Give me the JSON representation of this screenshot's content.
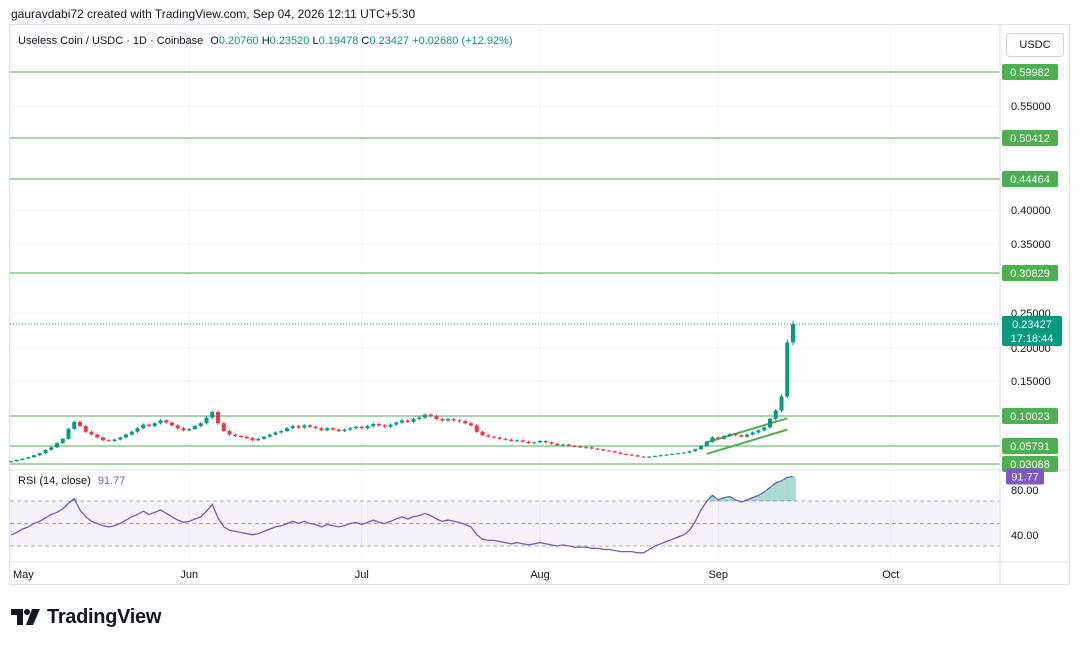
{
  "header": {
    "credit": "gauravdabi72 created with TradingView.com, Sep 04, 2026 12:11 UTC+5:30"
  },
  "legend": {
    "symbol": "Useless Coin / USDC · 1D · Coinbase",
    "open_label": "O",
    "open": "0.20760",
    "high_label": "H",
    "high": "0.23520",
    "low_label": "L",
    "low": "0.19478",
    "close_label": "C",
    "close": "0.23427",
    "change": "+0.02680 (+12.92%)"
  },
  "currency_button": "USDC",
  "rsi": {
    "label": "RSI (14, close)",
    "value": "91.77"
  },
  "logo_text": "TradingView",
  "colors": {
    "up": "#089981",
    "down": "#f23645",
    "level": "#4caf50",
    "rsi": "#7e57c2",
    "rsi_band": "#7e57c2"
  },
  "chart_data": [
    {
      "type": "candlestick",
      "title": "Useless Coin / USDC · 1D · Coinbase",
      "ylabel": "USDC",
      "x_tick_labels": [
        "May",
        "Jun",
        "Jul",
        "Aug",
        "Sep",
        "Oct"
      ],
      "y_tick_labels": [
        "0.55000",
        "0.40000",
        "0.35000",
        "0.25000",
        "0.20000",
        "0.15000"
      ],
      "y_ticks": [
        0.55,
        0.4,
        0.35,
        0.25,
        0.2,
        0.15
      ],
      "horizontal_levels": [
        {
          "value": 0.59982,
          "label": "0.59982"
        },
        {
          "value": 0.50412,
          "label": "0.50412"
        },
        {
          "value": 0.44464,
          "label": "0.44464"
        },
        {
          "value": 0.30829,
          "label": "0.30829"
        },
        {
          "value": 0.10023,
          "label": "0.10023"
        },
        {
          "value": 0.05791,
          "label": "0.05791"
        },
        {
          "value": 0.03088,
          "label": "0.03088"
        }
      ],
      "last_price": {
        "value": 0.23427,
        "label": "0.23427",
        "countdown": "17:18:44"
      },
      "x_start_date": "2026-05-01",
      "close": [
        0.035,
        0.037,
        0.039,
        0.041,
        0.044,
        0.047,
        0.052,
        0.056,
        0.062,
        0.068,
        0.082,
        0.092,
        0.086,
        0.078,
        0.074,
        0.07,
        0.066,
        0.065,
        0.067,
        0.07,
        0.074,
        0.078,
        0.083,
        0.088,
        0.086,
        0.09,
        0.094,
        0.091,
        0.087,
        0.083,
        0.08,
        0.082,
        0.086,
        0.09,
        0.098,
        0.106,
        0.09,
        0.079,
        0.074,
        0.072,
        0.071,
        0.069,
        0.066,
        0.068,
        0.071,
        0.074,
        0.077,
        0.079,
        0.083,
        0.086,
        0.084,
        0.087,
        0.085,
        0.083,
        0.08,
        0.083,
        0.081,
        0.079,
        0.081,
        0.083,
        0.085,
        0.083,
        0.086,
        0.089,
        0.087,
        0.085,
        0.088,
        0.091,
        0.094,
        0.092,
        0.096,
        0.098,
        0.102,
        0.1,
        0.096,
        0.094,
        0.096,
        0.094,
        0.093,
        0.09,
        0.087,
        0.078,
        0.073,
        0.071,
        0.07,
        0.068,
        0.067,
        0.065,
        0.066,
        0.064,
        0.062,
        0.063,
        0.065,
        0.063,
        0.061,
        0.059,
        0.06,
        0.058,
        0.057,
        0.056,
        0.056,
        0.054,
        0.053,
        0.051,
        0.05,
        0.048,
        0.046,
        0.045,
        0.044,
        0.042,
        0.041,
        0.042,
        0.043,
        0.044,
        0.045,
        0.046,
        0.047,
        0.048,
        0.05,
        0.053,
        0.058,
        0.064,
        0.07,
        0.068,
        0.072,
        0.075,
        0.073,
        0.071,
        0.074,
        0.077,
        0.08,
        0.084,
        0.096,
        0.108,
        0.128,
        0.208,
        0.234
      ],
      "series": [
        {
          "name": "RSI (14, close)",
          "type": "line",
          "last": 91.77,
          "values": [
            40,
            42,
            45,
            47,
            50,
            52,
            55,
            58,
            60,
            63,
            68,
            72,
            62,
            56,
            52,
            50,
            48,
            47,
            48,
            50,
            53,
            56,
            58,
            61,
            58,
            60,
            62,
            59,
            56,
            53,
            51,
            52,
            54,
            56,
            61,
            67,
            55,
            47,
            44,
            43,
            42,
            41,
            40,
            41,
            43,
            45,
            47,
            48,
            50,
            52,
            50,
            52,
            50,
            49,
            47,
            49,
            48,
            47,
            48,
            50,
            51,
            49,
            51,
            53,
            51,
            50,
            52,
            54,
            56,
            54,
            56,
            57,
            59,
            57,
            54,
            52,
            53,
            52,
            51,
            49,
            47,
            40,
            36,
            35,
            35,
            34,
            33,
            32,
            33,
            32,
            31,
            32,
            33,
            32,
            31,
            30,
            31,
            30,
            29,
            29,
            29,
            28,
            28,
            27,
            27,
            26,
            25,
            25,
            25,
            24,
            24,
            27,
            30,
            32,
            34,
            36,
            38,
            40,
            44,
            52,
            62,
            70,
            75,
            71,
            73,
            74,
            71,
            69,
            71,
            73,
            75,
            78,
            82,
            86,
            88,
            91,
            91.77
          ]
        },
        {
          "name": "RSI upper band",
          "value": 70
        },
        {
          "name": "RSI middle band",
          "value": 50
        },
        {
          "name": "RSI lower band",
          "value": 30
        }
      ],
      "rsi_tick_labels": [
        "80.00",
        "40.00"
      ],
      "rsi_ticks": [
        80,
        40
      ],
      "channel": {
        "lower": [
          [
            0.046,
            0.064
          ],
          [
            0.081,
            0.098
          ]
        ],
        "upper": [
          [
            0.063,
            0.066
          ],
          [
            0.097,
            0.1
          ]
        ]
      }
    }
  ]
}
